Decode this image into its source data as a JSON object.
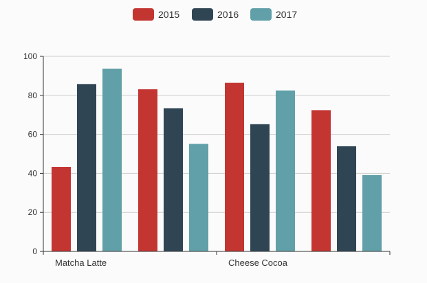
{
  "chart_data": {
    "type": "bar",
    "categories": [
      "Matcha Latte",
      "",
      "Cheese Cocoa",
      ""
    ],
    "series": [
      {
        "name": "2015",
        "values": [
          43.3,
          83.1,
          86.4,
          72.4
        ]
      },
      {
        "name": "2016",
        "values": [
          85.8,
          73.4,
          65.2,
          53.9
        ]
      },
      {
        "name": "2017",
        "values": [
          93.7,
          55.1,
          82.5,
          39.1
        ]
      }
    ],
    "colors": [
      "#c23531",
      "#2f4554",
      "#61a0a8"
    ],
    "ylim": [
      0,
      100
    ],
    "yticks": [
      0,
      20,
      40,
      60,
      80,
      100
    ],
    "xlabel": "",
    "ylabel": "",
    "title": "",
    "grid": true,
    "legend_position": "top-center"
  }
}
